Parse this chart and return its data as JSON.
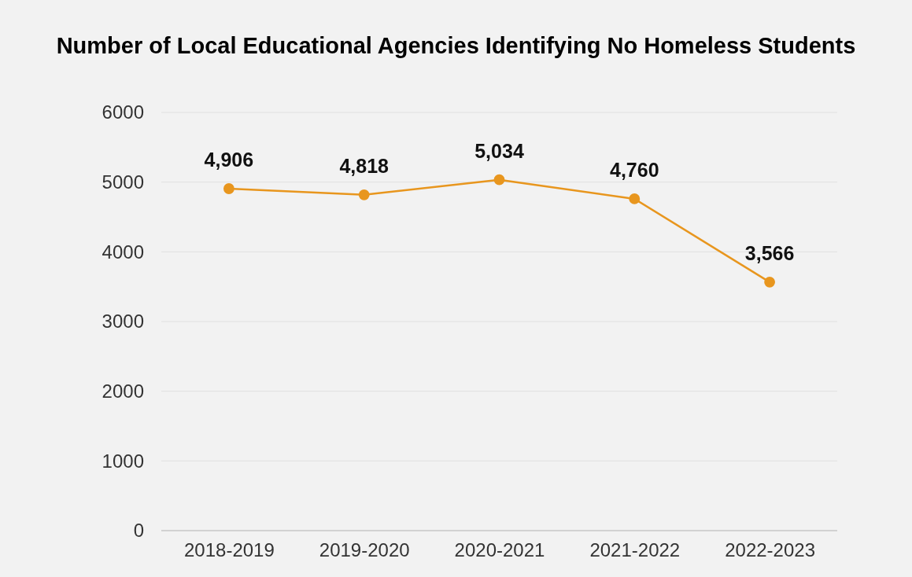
{
  "chart_data": {
    "type": "line",
    "title": "Number of Local Educational Agencies Identifying No Homeless Students",
    "categories": [
      "2018-2019",
      "2019-2020",
      "2020-2021",
      "2021-2022",
      "2022-2023"
    ],
    "series": [
      {
        "color": "#e8961e",
        "values": [
          4906,
          4818,
          5034,
          4760,
          3566
        ],
        "value_labels": [
          "4,906",
          "4,818",
          "5,034",
          "4,760",
          "3,566"
        ]
      }
    ],
    "ylim": [
      0,
      6000
    ],
    "yticks": [
      0,
      1000,
      2000,
      3000,
      4000,
      5000,
      6000
    ],
    "grid": "y",
    "marker": "circle"
  }
}
